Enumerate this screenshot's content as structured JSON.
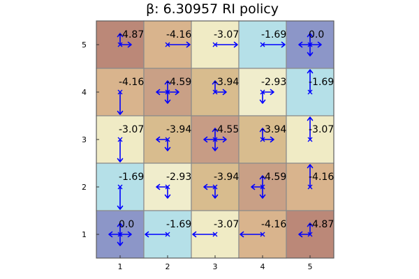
{
  "chart_data": {
    "type": "heatmap",
    "title": "β: 6.30957 RI policy",
    "xlabel": "",
    "ylabel": "",
    "xlim": [
      0.5,
      5.5
    ],
    "ylim": [
      0.5,
      5.5
    ],
    "x_ticks": [
      "1",
      "2",
      "3",
      "4",
      "5"
    ],
    "y_ticks": [
      "1",
      "2",
      "3",
      "4",
      "5"
    ],
    "grid": true,
    "colors": {
      "0.0": "#8c96c8",
      "-1.69": "#b5e0e8",
      "-2.93": "#f0edcc",
      "-3.07": "#f0ebc5",
      "-3.94": "#d8bc8e",
      "-4.16": "#d9b48d",
      "-4.55": "#c79c85",
      "-4.59": "#c9a086",
      "-4.87": "#bb8878",
      "arrow": "#0000ff"
    },
    "cells": [
      {
        "x": 1,
        "y": 5,
        "value": "-4.87",
        "arrows": [
          "up",
          "right"
        ]
      },
      {
        "x": 2,
        "y": 5,
        "value": "-4.16",
        "arrows": [
          "right"
        ]
      },
      {
        "x": 3,
        "y": 5,
        "value": "-3.07",
        "arrows": [
          "right"
        ]
      },
      {
        "x": 4,
        "y": 5,
        "value": "-1.69",
        "arrows": [
          "right"
        ]
      },
      {
        "x": 5,
        "y": 5,
        "value": "0.0",
        "arrows": [
          "up",
          "down",
          "left",
          "right"
        ]
      },
      {
        "x": 1,
        "y": 4,
        "value": "-4.16",
        "arrows": [
          "down"
        ]
      },
      {
        "x": 2,
        "y": 4,
        "value": "-4.59",
        "arrows": [
          "up",
          "down",
          "left",
          "right"
        ]
      },
      {
        "x": 3,
        "y": 4,
        "value": "-3.94",
        "arrows": [
          "up",
          "right"
        ]
      },
      {
        "x": 4,
        "y": 4,
        "value": "-2.93",
        "arrows": [
          "down",
          "right"
        ]
      },
      {
        "x": 5,
        "y": 4,
        "value": "-1.69",
        "arrows": [
          "up"
        ]
      },
      {
        "x": 1,
        "y": 3,
        "value": "-3.07",
        "arrows": [
          "down"
        ]
      },
      {
        "x": 2,
        "y": 3,
        "value": "-3.94",
        "arrows": [
          "down",
          "left"
        ]
      },
      {
        "x": 3,
        "y": 3,
        "value": "-4.55",
        "arrows": [
          "up",
          "down",
          "left",
          "right"
        ]
      },
      {
        "x": 4,
        "y": 3,
        "value": "-3.94",
        "arrows": [
          "up",
          "right"
        ]
      },
      {
        "x": 5,
        "y": 3,
        "value": "-3.07",
        "arrows": [
          "up"
        ]
      },
      {
        "x": 1,
        "y": 2,
        "value": "-1.69",
        "arrows": [
          "down"
        ]
      },
      {
        "x": 2,
        "y": 2,
        "value": "-2.93",
        "arrows": [
          "down",
          "left"
        ]
      },
      {
        "x": 3,
        "y": 2,
        "value": "-3.94",
        "arrows": [
          "down",
          "left"
        ]
      },
      {
        "x": 4,
        "y": 2,
        "value": "-4.59",
        "arrows": [
          "up",
          "down",
          "left"
        ]
      },
      {
        "x": 5,
        "y": 2,
        "value": "-4.16",
        "arrows": [
          "up"
        ]
      },
      {
        "x": 1,
        "y": 1,
        "value": "0.0",
        "arrows": [
          "up",
          "down",
          "left",
          "right"
        ]
      },
      {
        "x": 2,
        "y": 1,
        "value": "-1.69",
        "arrows": [
          "left"
        ]
      },
      {
        "x": 3,
        "y": 1,
        "value": "-3.07",
        "arrows": [
          "left"
        ]
      },
      {
        "x": 4,
        "y": 1,
        "value": "-4.16",
        "arrows": [
          "left"
        ]
      },
      {
        "x": 5,
        "y": 1,
        "value": "-4.87",
        "arrows": [
          "up",
          "left"
        ]
      }
    ]
  }
}
